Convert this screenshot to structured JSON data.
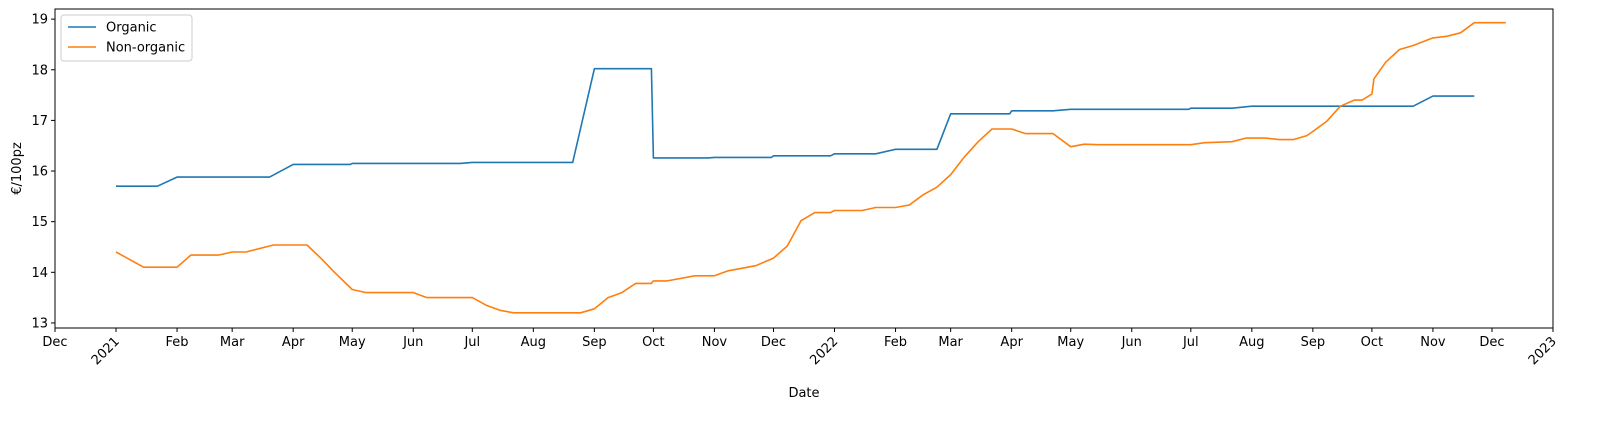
{
  "chart_data": {
    "type": "line",
    "xlabel": "Date",
    "ylabel": "€/100pz",
    "xlim": [
      "2020-12-01",
      "2023-01-01"
    ],
    "ylim": [
      12.9,
      19.2
    ],
    "yticks": [
      13,
      14,
      15,
      16,
      17,
      18,
      19
    ],
    "xticks": [
      {
        "date": "2020-12-01",
        "label": "Dec",
        "rotated": false
      },
      {
        "date": "2021-01-01",
        "label": "2021",
        "rotated": true
      },
      {
        "date": "2021-02-01",
        "label": "Feb",
        "rotated": false
      },
      {
        "date": "2021-03-01",
        "label": "Mar",
        "rotated": false
      },
      {
        "date": "2021-04-01",
        "label": "Apr",
        "rotated": false
      },
      {
        "date": "2021-05-01",
        "label": "May",
        "rotated": false
      },
      {
        "date": "2021-06-01",
        "label": "Jun",
        "rotated": false
      },
      {
        "date": "2021-07-01",
        "label": "Jul",
        "rotated": false
      },
      {
        "date": "2021-08-01",
        "label": "Aug",
        "rotated": false
      },
      {
        "date": "2021-09-01",
        "label": "Sep",
        "rotated": false
      },
      {
        "date": "2021-10-01",
        "label": "Oct",
        "rotated": false
      },
      {
        "date": "2021-11-01",
        "label": "Nov",
        "rotated": false
      },
      {
        "date": "2021-12-01",
        "label": "Dec",
        "rotated": false
      },
      {
        "date": "2022-01-01",
        "label": "2022",
        "rotated": true
      },
      {
        "date": "2022-02-01",
        "label": "Feb",
        "rotated": false
      },
      {
        "date": "2022-03-01",
        "label": "Mar",
        "rotated": false
      },
      {
        "date": "2022-04-01",
        "label": "Apr",
        "rotated": false
      },
      {
        "date": "2022-05-01",
        "label": "May",
        "rotated": false
      },
      {
        "date": "2022-06-01",
        "label": "Jun",
        "rotated": false
      },
      {
        "date": "2022-07-01",
        "label": "Jul",
        "rotated": false
      },
      {
        "date": "2022-08-01",
        "label": "Aug",
        "rotated": false
      },
      {
        "date": "2022-09-01",
        "label": "Sep",
        "rotated": false
      },
      {
        "date": "2022-10-01",
        "label": "Oct",
        "rotated": false
      },
      {
        "date": "2022-11-01",
        "label": "Nov",
        "rotated": false
      },
      {
        "date": "2022-12-01",
        "label": "Dec",
        "rotated": false
      },
      {
        "date": "2023-01-01",
        "label": "2023",
        "rotated": true
      }
    ],
    "grid": false,
    "legend": "upper-left",
    "series": [
      {
        "name": "Organic",
        "color": "#1f77b4",
        "points": [
          [
            "2021-01-01",
            15.7
          ],
          [
            "2021-01-22",
            15.7
          ],
          [
            "2021-02-01",
            15.88
          ],
          [
            "2021-03-20",
            15.88
          ],
          [
            "2021-04-01",
            16.13
          ],
          [
            "2021-04-30",
            16.13
          ],
          [
            "2021-05-01",
            16.15
          ],
          [
            "2021-06-25",
            16.15
          ],
          [
            "2021-07-01",
            16.17
          ],
          [
            "2021-08-21",
            16.17
          ],
          [
            "2021-09-01",
            18.02
          ],
          [
            "2021-09-30",
            18.02
          ],
          [
            "2021-10-01",
            16.26
          ],
          [
            "2021-10-29",
            16.26
          ],
          [
            "2021-11-01",
            16.27
          ],
          [
            "2021-11-30",
            16.27
          ],
          [
            "2021-12-01",
            16.3
          ],
          [
            "2021-12-30",
            16.3
          ],
          [
            "2022-01-01",
            16.34
          ],
          [
            "2022-01-22",
            16.34
          ],
          [
            "2022-02-01",
            16.43
          ],
          [
            "2022-02-22",
            16.43
          ],
          [
            "2022-03-01",
            17.13
          ],
          [
            "2022-03-31",
            17.13
          ],
          [
            "2022-04-01",
            17.19
          ],
          [
            "2022-04-22",
            17.19
          ],
          [
            "2022-05-01",
            17.22
          ],
          [
            "2022-06-30",
            17.22
          ],
          [
            "2022-07-01",
            17.24
          ],
          [
            "2022-07-22",
            17.24
          ],
          [
            "2022-08-01",
            17.28
          ],
          [
            "2022-10-22",
            17.28
          ],
          [
            "2022-11-01",
            17.48
          ],
          [
            "2022-11-22",
            17.48
          ]
        ]
      },
      {
        "name": "Non-organic",
        "color": "#ff7f0e",
        "points": [
          [
            "2021-01-01",
            14.4
          ],
          [
            "2021-01-15",
            14.1
          ],
          [
            "2021-02-01",
            14.1
          ],
          [
            "2021-02-08",
            14.34
          ],
          [
            "2021-02-22",
            14.34
          ],
          [
            "2021-03-01",
            14.4
          ],
          [
            "2021-03-08",
            14.4
          ],
          [
            "2021-03-22",
            14.54
          ],
          [
            "2021-04-08",
            14.54
          ],
          [
            "2021-04-15",
            14.28
          ],
          [
            "2021-04-22",
            14.0
          ],
          [
            "2021-05-01",
            13.66
          ],
          [
            "2021-05-08",
            13.6
          ],
          [
            "2021-06-01",
            13.6
          ],
          [
            "2021-06-08",
            13.5
          ],
          [
            "2021-07-01",
            13.5
          ],
          [
            "2021-07-08",
            13.35
          ],
          [
            "2021-07-15",
            13.25
          ],
          [
            "2021-07-22",
            13.2
          ],
          [
            "2021-08-25",
            13.2
          ],
          [
            "2021-09-01",
            13.28
          ],
          [
            "2021-09-08",
            13.5
          ],
          [
            "2021-09-15",
            13.6
          ],
          [
            "2021-09-22",
            13.78
          ],
          [
            "2021-09-30",
            13.78
          ],
          [
            "2021-10-01",
            13.83
          ],
          [
            "2021-10-08",
            13.83
          ],
          [
            "2021-10-22",
            13.93
          ],
          [
            "2021-11-01",
            13.93
          ],
          [
            "2021-11-08",
            14.03
          ],
          [
            "2021-11-22",
            14.13
          ],
          [
            "2021-12-01",
            14.28
          ],
          [
            "2021-12-08",
            14.52
          ],
          [
            "2021-12-15",
            15.02
          ],
          [
            "2021-12-22",
            15.18
          ],
          [
            "2021-12-30",
            15.18
          ],
          [
            "2022-01-01",
            15.22
          ],
          [
            "2022-01-15",
            15.22
          ],
          [
            "2022-01-22",
            15.28
          ],
          [
            "2022-02-01",
            15.28
          ],
          [
            "2022-02-08",
            15.33
          ],
          [
            "2022-02-15",
            15.53
          ],
          [
            "2022-02-22",
            15.68
          ],
          [
            "2022-03-01",
            15.93
          ],
          [
            "2022-03-08",
            16.28
          ],
          [
            "2022-03-15",
            16.58
          ],
          [
            "2022-03-22",
            16.83
          ],
          [
            "2022-04-01",
            16.83
          ],
          [
            "2022-04-08",
            16.74
          ],
          [
            "2022-04-22",
            16.74
          ],
          [
            "2022-05-01",
            16.48
          ],
          [
            "2022-05-08",
            16.53
          ],
          [
            "2022-05-15",
            16.52
          ],
          [
            "2022-07-01",
            16.52
          ],
          [
            "2022-07-08",
            16.56
          ],
          [
            "2022-07-22",
            16.58
          ],
          [
            "2022-07-29",
            16.65
          ],
          [
            "2022-08-08",
            16.65
          ],
          [
            "2022-08-15",
            16.62
          ],
          [
            "2022-08-22",
            16.62
          ],
          [
            "2022-08-29",
            16.7
          ],
          [
            "2022-09-01",
            16.78
          ],
          [
            "2022-09-08",
            16.98
          ],
          [
            "2022-09-15",
            17.28
          ],
          [
            "2022-09-22",
            17.4
          ],
          [
            "2022-09-26",
            17.4
          ],
          [
            "2022-10-01",
            17.52
          ],
          [
            "2022-10-02",
            17.82
          ],
          [
            "2022-10-08",
            18.15
          ],
          [
            "2022-10-15",
            18.4
          ],
          [
            "2022-10-22",
            18.48
          ],
          [
            "2022-11-01",
            18.63
          ],
          [
            "2022-11-08",
            18.66
          ],
          [
            "2022-11-15",
            18.73
          ],
          [
            "2022-11-22",
            18.93
          ],
          [
            "2022-12-08",
            18.93
          ]
        ]
      }
    ]
  }
}
